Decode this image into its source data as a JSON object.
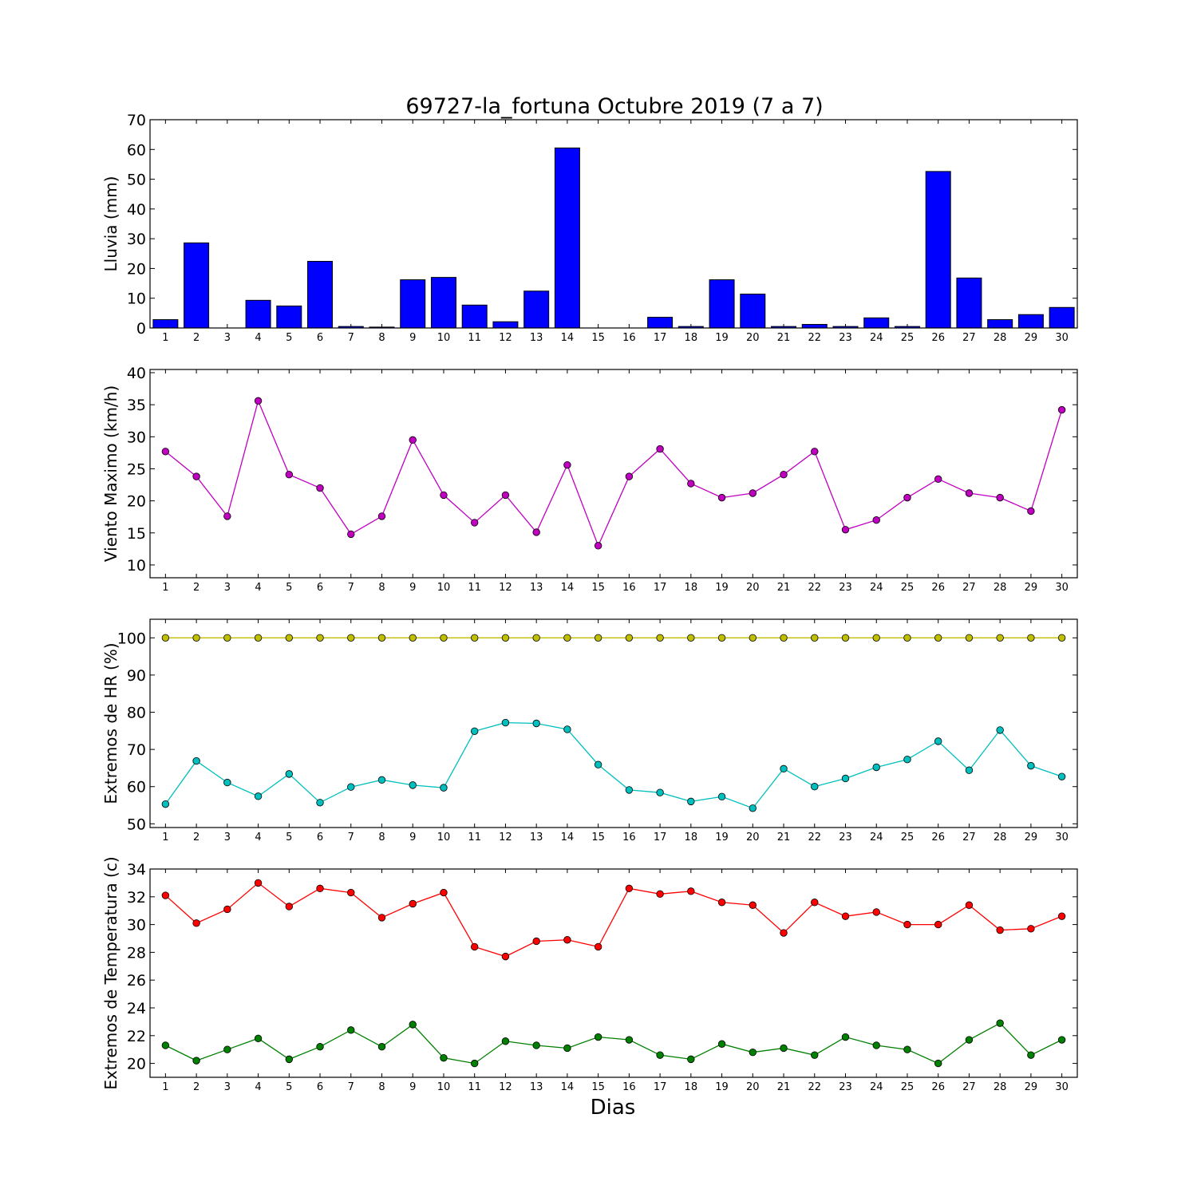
{
  "chart_data": [
    {
      "type": "bar",
      "title": "69727-la_fortuna Octubre 2019  (7 a 7)",
      "ylabel": "Lluvia (mm)",
      "xlabel": "",
      "ylim": [
        0,
        70
      ],
      "yticks": [
        0,
        10,
        20,
        30,
        40,
        50,
        60,
        70
      ],
      "categories": [
        "1",
        "2",
        "3",
        "4",
        "5",
        "6",
        "7",
        "8",
        "9",
        "10",
        "11",
        "12",
        "13",
        "14",
        "15",
        "16",
        "17",
        "18",
        "19",
        "20",
        "21",
        "22",
        "23",
        "24",
        "25",
        "26",
        "27",
        "28",
        "29",
        "30"
      ],
      "series": [
        {
          "values": [
            2.8,
            28.6,
            0.0,
            9.3,
            7.4,
            22.4,
            0.5,
            0.3,
            16.2,
            17.0,
            7.7,
            2.1,
            12.4,
            60.5,
            0.0,
            0.0,
            3.6,
            0.5,
            16.2,
            11.4,
            0.5,
            1.2,
            0.5,
            3.4,
            0.5,
            52.6,
            16.8,
            2.8,
            4.5,
            6.9
          ],
          "color": "#0000ff"
        }
      ],
      "grid": false
    },
    {
      "type": "line",
      "title": "",
      "ylabel": "Viento Maximo (km/h)",
      "xlabel": "",
      "ylim": [
        8,
        40.5
      ],
      "yticks": [
        10,
        15,
        20,
        25,
        30,
        35,
        40
      ],
      "categories": [
        "1",
        "2",
        "3",
        "4",
        "5",
        "6",
        "7",
        "8",
        "9",
        "10",
        "11",
        "12",
        "13",
        "14",
        "15",
        "16",
        "17",
        "18",
        "19",
        "20",
        "21",
        "22",
        "23",
        "24",
        "25",
        "26",
        "27",
        "28",
        "29",
        "30"
      ],
      "series": [
        {
          "values": [
            27.7,
            23.8,
            17.6,
            35.6,
            24.1,
            22.0,
            14.8,
            17.6,
            29.5,
            20.9,
            16.6,
            20.9,
            15.1,
            25.6,
            13.0,
            23.8,
            28.1,
            22.7,
            20.5,
            21.2,
            24.1,
            27.7,
            15.5,
            17.0,
            20.5,
            23.4,
            21.2,
            20.5,
            18.4,
            34.2
          ],
          "color": "#bf00bf"
        }
      ],
      "grid": false
    },
    {
      "type": "line",
      "title": "",
      "ylabel": "Extremos de HR (%)",
      "xlabel": "",
      "ylim": [
        49,
        105
      ],
      "yticks": [
        50,
        60,
        70,
        80,
        90,
        100
      ],
      "categories": [
        "1",
        "2",
        "3",
        "4",
        "5",
        "6",
        "7",
        "8",
        "9",
        "10",
        "11",
        "12",
        "13",
        "14",
        "15",
        "16",
        "17",
        "18",
        "19",
        "20",
        "21",
        "22",
        "23",
        "24",
        "25",
        "26",
        "27",
        "28",
        "29",
        "30"
      ],
      "series": [
        {
          "values": [
            100,
            100,
            100,
            100,
            100,
            100,
            100,
            100,
            100,
            100,
            100,
            100,
            100,
            100,
            100,
            100,
            100,
            100,
            100,
            100,
            100,
            100,
            100,
            100,
            100,
            100,
            100,
            100,
            100,
            100
          ],
          "color": "#bfbf00"
        },
        {
          "values": [
            55.3,
            66.9,
            61.1,
            57.4,
            63.4,
            55.7,
            59.9,
            61.8,
            60.4,
            59.7,
            74.9,
            77.2,
            77.0,
            75.4,
            65.9,
            59.1,
            58.4,
            56.0,
            57.3,
            54.2,
            64.8,
            60.0,
            62.2,
            65.2,
            67.3,
            72.2,
            64.4,
            75.2,
            65.6,
            62.7
          ],
          "color": "#00bfbf"
        }
      ],
      "grid": false
    },
    {
      "type": "line",
      "title": "",
      "ylabel": "Extremos de Temperatura (c)",
      "xlabel": "Dias",
      "ylim": [
        19,
        34
      ],
      "yticks": [
        20,
        22,
        24,
        26,
        28,
        30,
        32,
        34
      ],
      "categories": [
        "1",
        "2",
        "3",
        "4",
        "5",
        "6",
        "7",
        "8",
        "9",
        "10",
        "11",
        "12",
        "13",
        "14",
        "15",
        "16",
        "17",
        "18",
        "19",
        "20",
        "21",
        "22",
        "23",
        "24",
        "25",
        "26",
        "27",
        "28",
        "29",
        "30"
      ],
      "series": [
        {
          "values": [
            32.1,
            30.1,
            31.1,
            33.0,
            31.3,
            32.6,
            32.3,
            30.5,
            31.5,
            32.3,
            28.4,
            27.7,
            28.8,
            28.9,
            28.4,
            32.6,
            32.2,
            32.4,
            31.6,
            31.4,
            29.4,
            31.6,
            30.6,
            30.9,
            30.0,
            30.0,
            31.4,
            29.6,
            29.7,
            30.6
          ],
          "color": "#ff0000"
        },
        {
          "values": [
            21.3,
            20.2,
            21.0,
            21.8,
            20.3,
            21.2,
            22.4,
            21.2,
            22.8,
            20.4,
            20.0,
            21.6,
            21.3,
            21.1,
            21.9,
            21.7,
            20.6,
            20.3,
            21.4,
            20.8,
            21.1,
            20.6,
            21.9,
            21.3,
            21.0,
            20.0,
            21.7,
            22.9,
            20.6,
            21.7
          ],
          "color": "#008000"
        }
      ],
      "grid": false
    }
  ]
}
